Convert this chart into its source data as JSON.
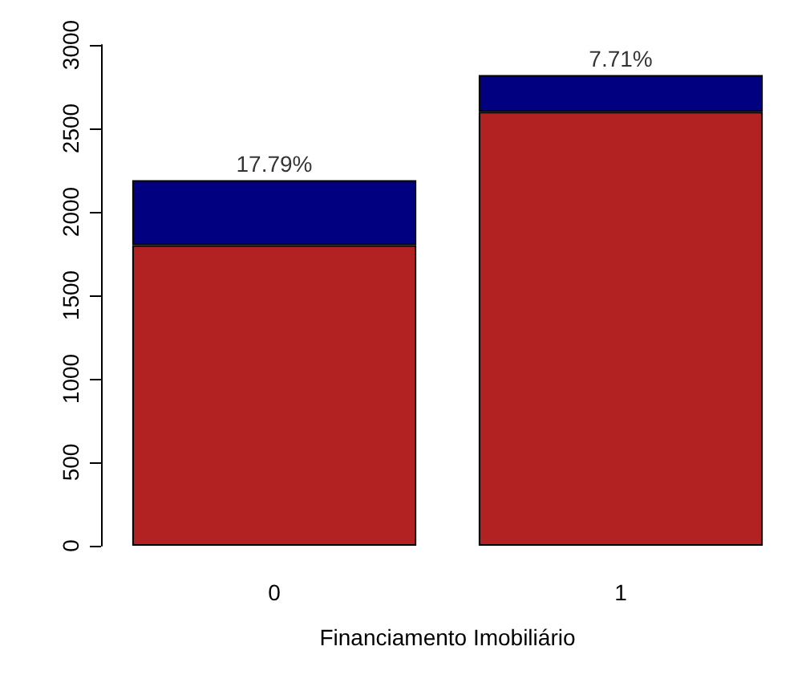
{
  "chart_data": {
    "type": "bar",
    "stacked": true,
    "xlabel": "Financiamento Imobiliário",
    "categories": [
      "0",
      "1"
    ],
    "series": [
      {
        "color": "#b22222",
        "values": [
          1800,
          2600
        ]
      },
      {
        "color": "#000080",
        "values": [
          390,
          220
        ]
      }
    ],
    "ylim": [
      0,
      3000
    ],
    "yticks": [
      0,
      500,
      1000,
      1500,
      2000,
      2500,
      3000
    ],
    "grid": false,
    "annotations": [
      {
        "text": "17.79%",
        "x": "0",
        "y": 2190
      },
      {
        "text": "7.71%",
        "x": "1",
        "y": 2820
      }
    ]
  }
}
